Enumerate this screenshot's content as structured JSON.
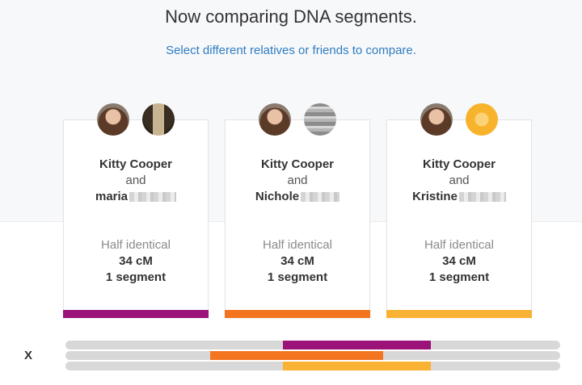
{
  "page": {
    "title": "Now comparing DNA segments.",
    "subtitle_link": "Select different relatives or friends to compare."
  },
  "cards": [
    {
      "person_a": "Kitty Cooper",
      "and_text": "and",
      "person_b": "maria",
      "relationship": "Half identical",
      "cm": "34 cM",
      "segments": "1 segment",
      "color": "#9b1379",
      "avatar_a": "profile-photo-icon",
      "avatar_b": "profile-photo-icon"
    },
    {
      "person_a": "Kitty Cooper",
      "and_text": "and",
      "person_b": "Nichole",
      "relationship": "Half identical",
      "cm": "34 cM",
      "segments": "1 segment",
      "color": "#f47520",
      "avatar_a": "profile-photo-icon",
      "avatar_b": "profile-photo-icon"
    },
    {
      "person_a": "Kitty Cooper",
      "and_text": "and",
      "person_b": "Kristine",
      "relationship": "Half identical",
      "cm": "34 cM",
      "segments": "1 segment",
      "color": "#f9b233",
      "avatar_a": "profile-photo-icon",
      "avatar_b": "default-avatar-icon"
    }
  ],
  "chromosome": {
    "label": "X",
    "tracks": [
      {
        "color": "#9b1379",
        "segment_start": 0.44,
        "segment_end": 0.738
      },
      {
        "color": "#f47520",
        "segment_start": 0.292,
        "segment_end": 0.642
      },
      {
        "color": "#f9b233",
        "segment_start": 0.44,
        "segment_end": 0.738
      }
    ],
    "track_color": "#d8d8d8"
  }
}
